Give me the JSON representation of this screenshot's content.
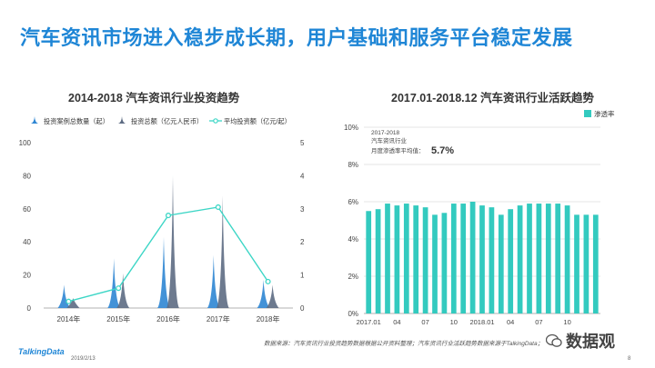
{
  "page": {
    "title": "汽车资讯市场进入稳步成长期，用户基础和服务平台稳定发展",
    "footer_source": "数据来源：汽车资讯行业投资趋势数据根据公开资料整理；汽车资讯行业活跃趋势数据来源于TalkingData；",
    "brand": "TalkingData",
    "date": "2019/2/13",
    "page_number": "8",
    "watermark": "数据观"
  },
  "colors": {
    "accent": "#1f86d6",
    "count_spike": "#2f86d3",
    "amount_spike": "#5d6b83",
    "avg_line": "#3dd6c6",
    "bar": "#33cabf",
    "grid": "#dddddd",
    "axis": "#999999"
  },
  "chart_data": [
    {
      "type": "line",
      "title": "2014-2018  汽车资讯行业投资趋势",
      "categories": [
        "2014年",
        "2015年",
        "2016年",
        "2017年",
        "2018年"
      ],
      "left_axis": {
        "ticks": [
          "0",
          "20",
          "40",
          "60",
          "80",
          "100"
        ],
        "ylim": [
          0,
          100
        ]
      },
      "right_axis": {
        "ticks": [
          "0",
          "1",
          "2",
          "3",
          "4",
          "5"
        ],
        "ylim": [
          0,
          5
        ]
      },
      "series": [
        {
          "name": "投资案例总数量（起）",
          "axis": "left",
          "style": "spike",
          "values": [
            14,
            30,
            43,
            32,
            17
          ]
        },
        {
          "name": "投资总额（亿元人民币）",
          "axis": "left",
          "style": "spike",
          "values": [
            6,
            21,
            80,
            68,
            14
          ]
        },
        {
          "name": "平均投资额（亿元/起）",
          "axis": "right",
          "style": "line",
          "values": [
            0.2,
            0.6,
            2.8,
            3.05,
            0.8
          ]
        }
      ]
    },
    {
      "type": "bar",
      "title": "2017.01-2018.12  汽车资讯行业活跃趋势",
      "legend": "渗透率",
      "ylim": [
        0,
        10
      ],
      "y_ticks": [
        "0%",
        "2%",
        "4%",
        "6%",
        "8%",
        "10%"
      ],
      "x_tick_labels": [
        "2017.01",
        "04",
        "07",
        "10",
        "2018.01",
        "04",
        "07",
        "10"
      ],
      "annotation": {
        "line1": "2017-2018",
        "line2": "汽车资讯行业",
        "line3": "月度渗透率平均值：",
        "value": "5.7%"
      },
      "series": [
        {
          "name": "渗透率",
          "values": [
            5.5,
            5.6,
            5.9,
            5.8,
            5.9,
            5.8,
            5.7,
            5.3,
            5.4,
            5.9,
            5.9,
            6.0,
            5.8,
            5.7,
            5.3,
            5.6,
            5.8,
            5.9,
            5.9,
            5.9,
            5.9,
            5.8,
            5.3,
            5.3,
            5.3
          ]
        }
      ]
    }
  ]
}
